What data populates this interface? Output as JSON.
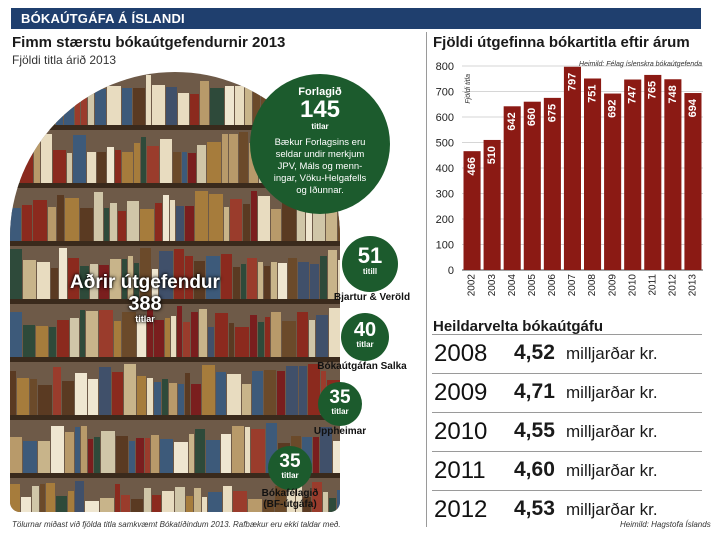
{
  "banner": "BÓKAÚTGÁFA Á ÍSLANDI",
  "left": {
    "title": "Fimm stærstu bókaútgefendurnir 2013",
    "subtitle": "Fjöldi titla árið 2013",
    "forlagid": {
      "name": "Forlagið",
      "count": "145",
      "unit": "titlar",
      "desc": [
        "Bækur Forlagsins eru",
        "seldar undir merkjum",
        "JPV, Máls og menn-",
        "ingar, Vöku-Helgafells",
        "og Iðunnar."
      ]
    },
    "publishers": [
      {
        "count": "51",
        "unit": "titill",
        "name": "Bjartur & Veröld"
      },
      {
        "count": "40",
        "unit": "titlar",
        "name": "Bókaútgáfan Salka"
      },
      {
        "count": "35",
        "unit": "titlar",
        "name": "Uppheimar"
      },
      {
        "count": "35",
        "unit": "titlar",
        "name": "Bókafélagið",
        "name2": "(BF-útgáfa)"
      }
    ],
    "other": {
      "label1": "Aðrir útgefendur",
      "count": "388",
      "unit": "titlar"
    },
    "footnote": "Tölurnar miðast við fjölda titla samkvæmt Bókatíðindum 2013. Rafbækur eru ekki taldar með."
  },
  "chart_data": {
    "type": "bar",
    "title": "Fjöldi útgefinna bókartitla eftir árum",
    "ylabel": "Fjöldi titla",
    "source": "Heimild: Félag íslenskra bókaútgefenda",
    "categories": [
      "2002",
      "2003",
      "2004",
      "2005",
      "2006",
      "2007",
      "2008",
      "2009",
      "2010",
      "2011",
      "2012",
      "2013"
    ],
    "values": [
      466,
      510,
      642,
      660,
      675,
      797,
      751,
      692,
      747,
      765,
      748,
      694
    ],
    "ylim": [
      0,
      800
    ],
    "yticks": [
      0,
      100,
      200,
      300,
      400,
      500,
      600,
      700,
      800
    ],
    "bar_color": "#8b1a14"
  },
  "revenue": {
    "title": "Heildarvelta bókaútgáfu",
    "rows": [
      {
        "year": "2008",
        "value": "4,52",
        "unit": "milljarðar kr."
      },
      {
        "year": "2009",
        "value": "4,71",
        "unit": "milljarðar kr."
      },
      {
        "year": "2010",
        "value": "4,55",
        "unit": "milljarðar kr."
      },
      {
        "year": "2011",
        "value": "4,60",
        "unit": "milljarðar kr."
      },
      {
        "year": "2012",
        "value": "4,53",
        "unit": "milljarðar kr."
      }
    ],
    "source": "Heimild: Hagstofa Íslands"
  }
}
